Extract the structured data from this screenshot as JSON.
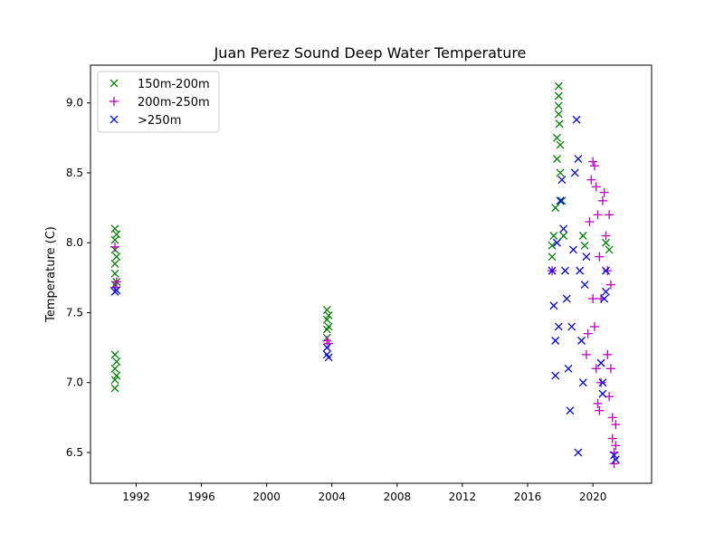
{
  "chart_data": {
    "type": "scatter",
    "title": "Juan Perez Sound Deep Water Temperature",
    "xlabel": "",
    "ylabel": "Temperature (C)",
    "xlim": [
      1989.2,
      2023.6
    ],
    "ylim": [
      6.28,
      9.27
    ],
    "x_ticks": [
      1992,
      1996,
      2000,
      2004,
      2008,
      2012,
      2016,
      2020
    ],
    "x_tick_labels": [
      "1992",
      "1996",
      "2000",
      "2004",
      "2008",
      "2012",
      "2016",
      "2020"
    ],
    "y_ticks": [
      6.5,
      7.0,
      7.5,
      8.0,
      8.5,
      9.0
    ],
    "y_tick_labels": [
      "6.5",
      "7.0",
      "7.5",
      "8.0",
      "8.5",
      "9.0"
    ],
    "grid": false,
    "legend_position": "top-left",
    "series": [
      {
        "name": "150m-200m",
        "marker": "x",
        "color": "#008000",
        "points": [
          [
            1990.7,
            8.1
          ],
          [
            1990.7,
            8.02
          ],
          [
            1990.7,
            7.95
          ],
          [
            1990.7,
            7.85
          ],
          [
            1990.7,
            7.78
          ],
          [
            1990.7,
            7.7
          ],
          [
            1990.8,
            8.06
          ],
          [
            1990.8,
            7.9
          ],
          [
            1990.8,
            7.72
          ],
          [
            1990.7,
            7.2
          ],
          [
            1990.7,
            7.1
          ],
          [
            1990.7,
            7.02
          ],
          [
            1990.7,
            6.96
          ],
          [
            1990.8,
            7.15
          ],
          [
            1990.8,
            7.05
          ],
          [
            2003.7,
            7.52
          ],
          [
            2003.7,
            7.45
          ],
          [
            2003.7,
            7.38
          ],
          [
            2003.7,
            7.32
          ],
          [
            2003.8,
            7.48
          ],
          [
            2003.8,
            7.4
          ],
          [
            2017.5,
            7.98
          ],
          [
            2017.5,
            7.9
          ],
          [
            2017.6,
            8.05
          ],
          [
            2017.7,
            8.25
          ],
          [
            2017.8,
            8.6
          ],
          [
            2017.8,
            8.75
          ],
          [
            2017.9,
            8.92
          ],
          [
            2017.9,
            9.12
          ],
          [
            2017.9,
            9.05
          ],
          [
            2017.9,
            8.98
          ],
          [
            2017.95,
            8.85
          ],
          [
            2018.0,
            8.7
          ],
          [
            2018.0,
            8.5
          ],
          [
            2018.1,
            8.3
          ],
          [
            2018.2,
            8.05
          ],
          [
            2019.4,
            8.05
          ],
          [
            2019.5,
            7.98
          ],
          [
            2020.8,
            8.0
          ],
          [
            2021.0,
            7.95
          ]
        ]
      },
      {
        "name": "200m-250m",
        "marker": "+",
        "color": "#bf00bf",
        "points": [
          [
            1990.7,
            7.97
          ],
          [
            1990.7,
            7.68
          ],
          [
            1990.8,
            7.72
          ],
          [
            2003.7,
            7.3
          ],
          [
            2003.8,
            7.28
          ],
          [
            2017.5,
            7.8
          ],
          [
            2019.6,
            7.2
          ],
          [
            2019.7,
            7.35
          ],
          [
            2019.8,
            8.15
          ],
          [
            2019.9,
            8.45
          ],
          [
            2020.0,
            8.58
          ],
          [
            2020.0,
            7.6
          ],
          [
            2020.1,
            8.55
          ],
          [
            2020.1,
            7.4
          ],
          [
            2020.2,
            8.4
          ],
          [
            2020.2,
            7.1
          ],
          [
            2020.3,
            8.2
          ],
          [
            2020.3,
            6.85
          ],
          [
            2020.4,
            7.9
          ],
          [
            2020.4,
            6.8
          ],
          [
            2020.5,
            7.6
          ],
          [
            2020.5,
            7.0
          ],
          [
            2020.6,
            8.3
          ],
          [
            2020.7,
            8.36
          ],
          [
            2020.8,
            8.05
          ],
          [
            2020.9,
            7.8
          ],
          [
            2020.9,
            7.2
          ],
          [
            2021.0,
            8.2
          ],
          [
            2021.0,
            6.9
          ],
          [
            2021.1,
            7.7
          ],
          [
            2021.1,
            7.1
          ],
          [
            2021.2,
            6.75
          ],
          [
            2021.2,
            6.6
          ],
          [
            2021.3,
            6.5
          ],
          [
            2021.3,
            6.42
          ],
          [
            2021.4,
            6.7
          ],
          [
            2021.4,
            6.55
          ]
        ]
      },
      {
        "name": ">250m",
        "marker": "x",
        "color": "#0000ff",
        "points": [
          [
            1990.7,
            7.65
          ],
          [
            1990.8,
            7.66
          ],
          [
            2003.7,
            7.25
          ],
          [
            2003.7,
            7.2
          ],
          [
            2003.8,
            7.18
          ],
          [
            2017.5,
            7.8
          ],
          [
            2017.6,
            7.55
          ],
          [
            2017.7,
            7.3
          ],
          [
            2017.7,
            7.05
          ],
          [
            2017.8,
            8.0
          ],
          [
            2017.9,
            7.4
          ],
          [
            2018.0,
            8.3
          ],
          [
            2018.1,
            8.45
          ],
          [
            2018.2,
            8.1
          ],
          [
            2018.3,
            7.8
          ],
          [
            2018.4,
            7.6
          ],
          [
            2018.5,
            7.1
          ],
          [
            2018.6,
            6.8
          ],
          [
            2018.7,
            7.4
          ],
          [
            2018.8,
            7.95
          ],
          [
            2018.9,
            8.5
          ],
          [
            2019.0,
            8.88
          ],
          [
            2019.1,
            8.6
          ],
          [
            2019.1,
            6.5
          ],
          [
            2019.2,
            7.8
          ],
          [
            2019.3,
            7.3
          ],
          [
            2019.4,
            7.0
          ],
          [
            2019.5,
            7.7
          ],
          [
            2019.6,
            7.9
          ],
          [
            2020.5,
            7.14
          ],
          [
            2020.6,
            7.0
          ],
          [
            2020.6,
            6.92
          ],
          [
            2020.7,
            7.6
          ],
          [
            2020.8,
            7.8
          ],
          [
            2020.8,
            7.65
          ],
          [
            2021.3,
            6.48
          ],
          [
            2021.4,
            6.45
          ]
        ]
      }
    ]
  }
}
